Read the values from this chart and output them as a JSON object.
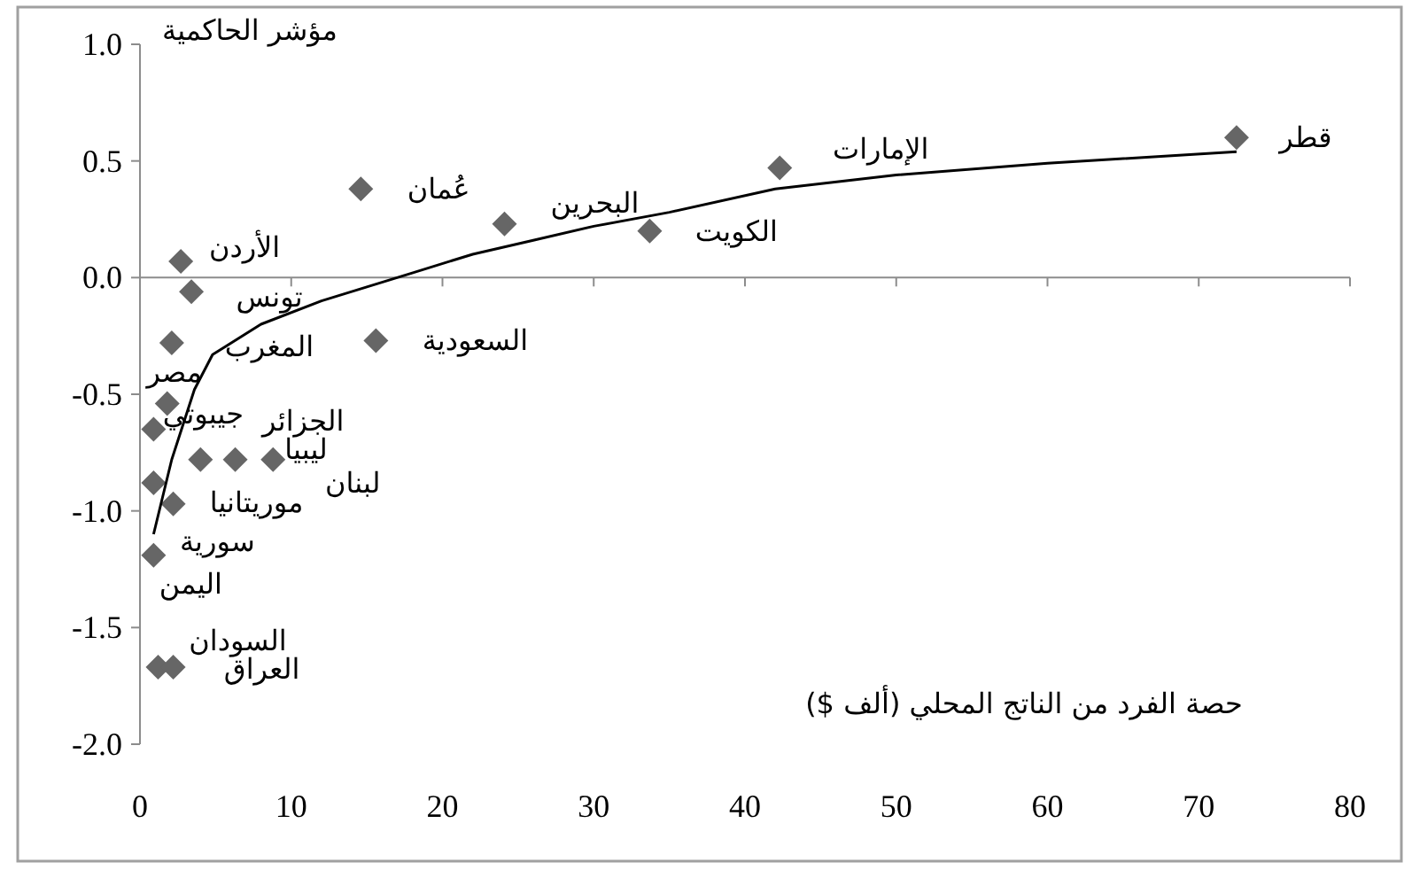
{
  "chart_data": {
    "type": "scatter",
    "xlabel": "حصة الفرد من الناتج المحلي (ألف $)",
    "ylabel": "مؤشر الحاكمية",
    "xlim": [
      0,
      80
    ],
    "ylim": [
      -2,
      1
    ],
    "xticks": [
      0,
      10,
      20,
      30,
      40,
      50,
      60,
      70,
      80
    ],
    "yticks": [
      {
        "value": -2,
        "label": "-2.0"
      },
      {
        "value": -1.5,
        "label": "-1.5"
      },
      {
        "value": -1,
        "label": "-1.0"
      },
      {
        "value": -0.5,
        "label": "-0.5"
      },
      {
        "value": 0,
        "label": "0.0"
      },
      {
        "value": 0.5,
        "label": "0.5"
      },
      {
        "value": 1,
        "label": "1.0"
      }
    ],
    "series": [
      {
        "type": "scatter",
        "color": "#666666",
        "marker": "diamond",
        "x": [
          72.5,
          42.3,
          33.7,
          24.1,
          14.6,
          15.6,
          2.7,
          3.4,
          2.1,
          1.8,
          0.9,
          4.0,
          6.3,
          8.8,
          2.2,
          0.9,
          0.9,
          1.2,
          2.2
        ],
        "values": [
          0.6,
          0.47,
          0.2,
          0.23,
          0.38,
          -0.27,
          0.07,
          -0.06,
          -0.28,
          -0.54,
          -0.65,
          -0.78,
          -0.78,
          -0.78,
          -0.97,
          -0.88,
          -1.19,
          -1.67,
          -1.67
        ]
      },
      {
        "type": "line",
        "color": "#000000",
        "marker": "none",
        "line_style": "solid",
        "x": [
          0.9,
          2.1,
          3.6,
          4.8,
          8,
          12,
          15,
          18,
          22,
          26,
          30,
          35,
          42,
          50,
          60,
          72.5
        ],
        "values": [
          -1.1,
          -0.78,
          -0.48,
          -0.33,
          -0.2,
          -0.1,
          -0.04,
          0.02,
          0.1,
          0.16,
          0.22,
          0.28,
          0.38,
          0.44,
          0.49,
          0.54
        ]
      }
    ],
    "annotations": [
      {
        "text": "قطر",
        "x": 72.5,
        "y": 0.6
      },
      {
        "text": "الإمارات",
        "x": 42.3,
        "y": 0.47
      },
      {
        "text": "الكويت",
        "x": 33.7,
        "y": 0.2
      },
      {
        "text": "البحرين",
        "x": 24.1,
        "y": 0.23
      },
      {
        "text": "عُمان",
        "x": 14.6,
        "y": 0.38
      },
      {
        "text": "السعودية",
        "x": 15.6,
        "y": -0.27
      },
      {
        "text": "الأردن",
        "x": 2.7,
        "y": 0.07
      },
      {
        "text": "تونس",
        "x": 3.4,
        "y": -0.06
      },
      {
        "text": "المغرب",
        "x": 2.1,
        "y": -0.28
      },
      {
        "text": "مصر",
        "x": 1.8,
        "y": -0.54
      },
      {
        "text": "جيبوتي",
        "x": 0.9,
        "y": -0.65
      },
      {
        "text": "الجزائر",
        "x": 4.0,
        "y": -0.78
      },
      {
        "text": "ليبيا",
        "x": 6.3,
        "y": -0.78
      },
      {
        "text": "لبنان",
        "x": 8.8,
        "y": -0.78
      },
      {
        "text": "موريتانيا",
        "x": 2.2,
        "y": -0.97
      },
      {
        "text": "سورية",
        "x": 0.9,
        "y": -0.88
      },
      {
        "text": "اليمن",
        "x": 0.9,
        "y": -1.19
      },
      {
        "text": "السودان",
        "x": 1.2,
        "y": -1.67
      },
      {
        "text": "العراق",
        "x": 2.2,
        "y": -1.67
      }
    ]
  }
}
